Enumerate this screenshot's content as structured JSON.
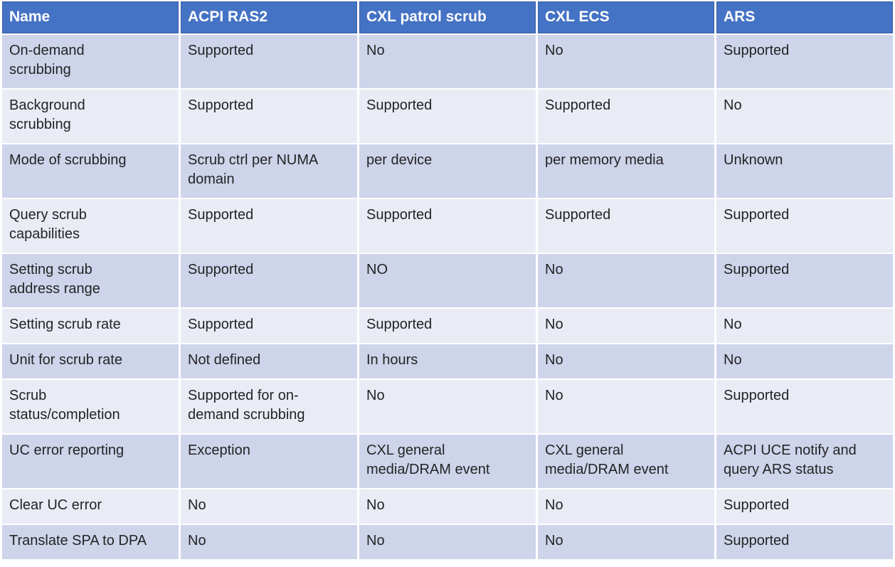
{
  "theme": {
    "page_bg": "#FFFFFF",
    "header_bg": "#4472C4",
    "header_text": "#FFFFFF",
    "row_dark": "#CED4EA",
    "row_light": "#E9EBF5",
    "body_text": "#242424"
  },
  "table": {
    "columns": [
      "Name",
      "ACPI RAS2",
      "CXL patrol scrub",
      "CXL ECS",
      "ARS"
    ],
    "rows": [
      {
        "cells": [
          "On-demand\nscrubbing",
          "Supported",
          "No",
          "No",
          "Supported"
        ]
      },
      {
        "cells": [
          "Background\nscrubbing",
          "Supported",
          "Supported",
          "Supported",
          "No"
        ]
      },
      {
        "cells": [
          "Mode of scrubbing",
          "Scrub ctrl per NUMA\ndomain",
          "per device",
          "per memory media",
          "Unknown"
        ]
      },
      {
        "cells": [
          "Query scrub\ncapabilities",
          "Supported",
          "Supported",
          "Supported",
          "Supported"
        ]
      },
      {
        "cells": [
          "Setting scrub\naddress range",
          "Supported",
          "NO",
          "No",
          "Supported"
        ]
      },
      {
        "cells": [
          "Setting scrub rate",
          "Supported",
          "Supported",
          "No",
          "No"
        ]
      },
      {
        "cells": [
          "Unit for scrub rate",
          "Not defined",
          "In hours",
          "No",
          "No"
        ]
      },
      {
        "cells": [
          "Scrub\nstatus/completion",
          "Supported for on-\ndemand scrubbing",
          "No",
          "No",
          "Supported"
        ]
      },
      {
        "cells": [
          "UC error reporting",
          "Exception",
          "CXL general\nmedia/DRAM event",
          "CXL general\nmedia/DRAM event",
          "ACPI UCE notify and\nquery ARS status"
        ]
      },
      {
        "cells": [
          "Clear UC error",
          "No",
          "No",
          "No",
          "Supported"
        ]
      },
      {
        "cells": [
          "Translate SPA to DPA",
          "No",
          "No",
          "No",
          "Supported"
        ]
      }
    ]
  }
}
